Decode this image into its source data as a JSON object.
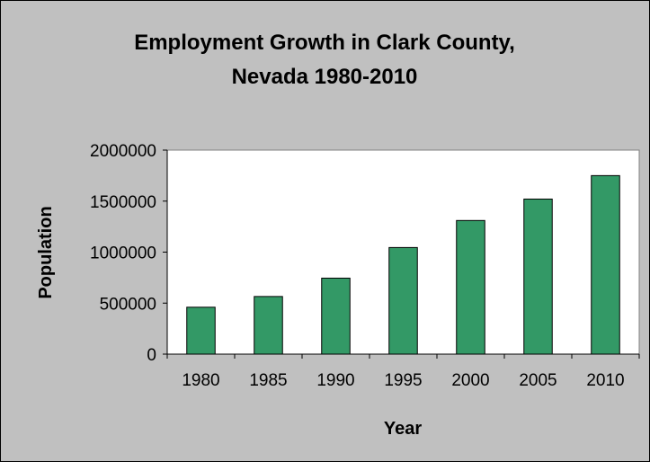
{
  "chart_data": {
    "type": "bar",
    "title_lines": [
      "Employment Growth in Clark County,",
      "Nevada 1980-2010"
    ],
    "xlabel": "Year",
    "ylabel": "Population",
    "categories": [
      "1980",
      "1985",
      "1990",
      "1995",
      "2000",
      "2005",
      "2010"
    ],
    "values": [
      460000,
      565000,
      745000,
      1045000,
      1310000,
      1520000,
      1750000
    ],
    "ylim": [
      0,
      2000000
    ],
    "yticks": [
      "0",
      "500000",
      "1000000",
      "1500000",
      "2000000"
    ],
    "grid": false,
    "legend": false,
    "bar_color": "#339966",
    "plot_background": "#ffffff",
    "chart_background": "#c0c0c0"
  }
}
